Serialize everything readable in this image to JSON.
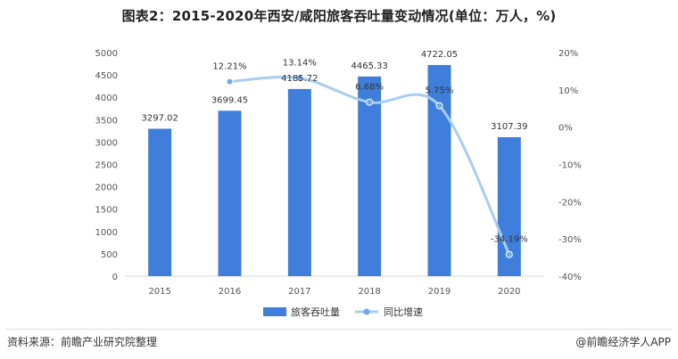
{
  "title": "图表2：2015-2020年西安/咸阳旅客吞吐量变动情况(单位：万人，%)",
  "footer": {
    "source": "资料来源：前瞻产业研究院整理",
    "brand": "@前瞻经济学人APP"
  },
  "colors": {
    "bar": "#3f7fdb",
    "line": "#a9cdf0",
    "marker": "#6fa8e6",
    "grid": "#e6e6e6"
  },
  "chart_data": {
    "type": "bar",
    "categories": [
      "2015",
      "2016",
      "2017",
      "2018",
      "2019",
      "2020"
    ],
    "series": [
      {
        "name": "旅客吞吐量",
        "type": "bar",
        "axis": "left",
        "values": [
          3297.02,
          3699.45,
          4185.72,
          4465.33,
          4722.05,
          3107.39
        ],
        "labels": [
          "3297.02",
          "3699.45",
          "4185.72",
          "4465.33",
          "4722.05",
          "3107.39"
        ]
      },
      {
        "name": "同比增速",
        "type": "line",
        "axis": "right",
        "smooth": true,
        "values": [
          null,
          12.21,
          13.14,
          6.68,
          5.75,
          -34.19
        ],
        "labels": [
          "",
          "12.21%",
          "13.14%",
          "6.68%",
          "5.75%",
          "-34.19%"
        ]
      }
    ],
    "y_left": {
      "min": 0,
      "max": 5000,
      "ticks": [
        "0",
        "500",
        "1000",
        "1500",
        "2000",
        "2500",
        "3000",
        "3500",
        "4000",
        "4500",
        "5000"
      ]
    },
    "y_right": {
      "min": -40,
      "max": 20,
      "ticks": [
        "-40%",
        "-30%",
        "-20%",
        "-10%",
        "0%",
        "10%",
        "20%"
      ]
    },
    "grid": false,
    "legend_position": "bottom"
  }
}
